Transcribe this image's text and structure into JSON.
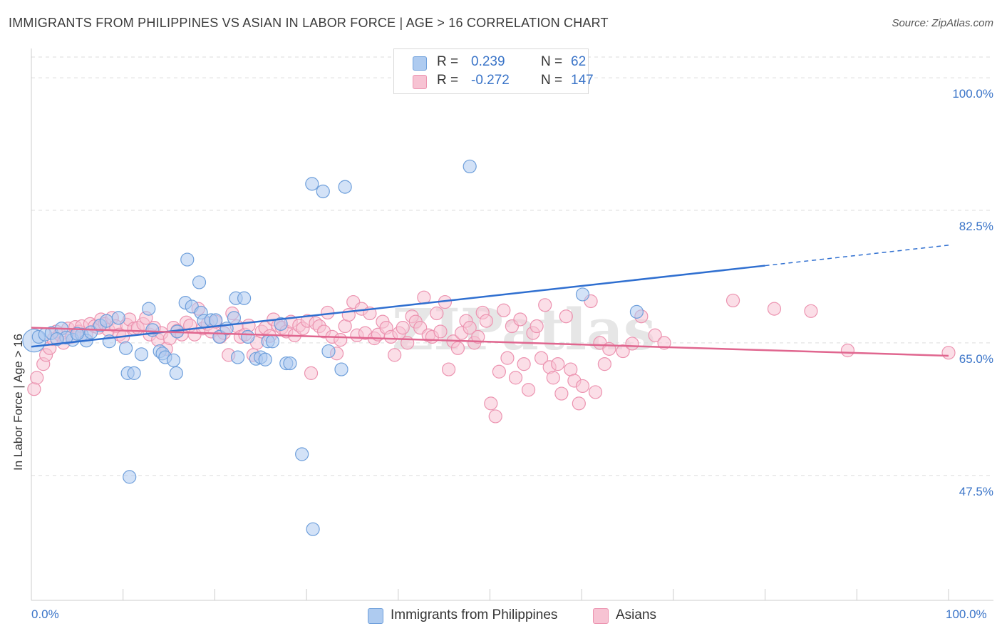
{
  "title": "IMMIGRANTS FROM PHILIPPINES VS ASIAN IN LABOR FORCE | AGE > 16 CORRELATION CHART",
  "source": "Source: ZipAtlas.com",
  "watermark": "ZIPatlas",
  "colors": {
    "blue_fill": "#aecbf0",
    "blue_stroke": "#6e9fdb",
    "blue_line": "#2f6fd0",
    "pink_fill": "#f7c3d3",
    "pink_stroke": "#ec93b0",
    "pink_line": "#e0668f",
    "axis_text": "#3a74c8",
    "grid": "#dddddd"
  },
  "legend": {
    "r_label": "R =",
    "n_label": "N =",
    "rows": [
      {
        "r": "0.239",
        "n": "62"
      },
      {
        "r": "-0.272",
        "n": "147"
      }
    ]
  },
  "bottom_legend": [
    "Immigrants from Philippines",
    "Asians"
  ],
  "chart_data": {
    "type": "scatter",
    "title": "IMMIGRANTS FROM PHILIPPINES VS ASIAN IN LABOR FORCE | AGE > 16 CORRELATION CHART",
    "xlabel": "",
    "ylabel": "In Labor Force | Age > 16",
    "xlim": [
      0,
      100
    ],
    "ylim": [
      31.0,
      103.5
    ],
    "y_ticks": [
      47.5,
      65.0,
      82.5,
      100.0
    ],
    "y_tick_labels": [
      "47.5%",
      "65.0%",
      "82.5%",
      "100.0%"
    ],
    "x_tick_labels": [
      "0.0%",
      "100.0%"
    ],
    "grid": true,
    "legend_position": "top-center",
    "series": [
      {
        "name": "Immigrants from Philippines",
        "r": 0.239,
        "n": 62,
        "trend": {
          "x0": 0,
          "y0": 64.5,
          "x1": 80,
          "y1": 75.2,
          "dash_x1": 100,
          "dash_y1": 77.9
        },
        "points": [
          [
            0.3,
            65.3
          ],
          [
            0.8,
            65.8
          ],
          [
            1.5,
            66.1
          ],
          [
            2.2,
            66.3
          ],
          [
            3.3,
            66.9
          ],
          [
            4.5,
            65.4
          ],
          [
            5.5,
            66.1
          ],
          [
            6.0,
            65.3
          ],
          [
            3.8,
            65.7
          ],
          [
            6.5,
            66.4
          ],
          [
            7.5,
            67.3
          ],
          [
            8.2,
            67.9
          ],
          [
            9.5,
            68.3
          ],
          [
            8.5,
            65.2
          ],
          [
            10.3,
            64.3
          ],
          [
            10.5,
            61.0
          ],
          [
            10.7,
            47.3
          ],
          [
            11.2,
            61.0
          ],
          [
            12.0,
            63.5
          ],
          [
            12.8,
            69.5
          ],
          [
            13.2,
            66.7
          ],
          [
            14.0,
            63.9
          ],
          [
            14.3,
            63.6
          ],
          [
            14.6,
            63.1
          ],
          [
            15.5,
            62.7
          ],
          [
            15.8,
            61.0
          ],
          [
            15.9,
            66.5
          ],
          [
            16.8,
            70.3
          ],
          [
            17.5,
            69.8
          ],
          [
            18.5,
            69.0
          ],
          [
            18.8,
            67.9
          ],
          [
            17.0,
            76.0
          ],
          [
            18.3,
            73.0
          ],
          [
            19.6,
            68.0
          ],
          [
            20.1,
            68.0
          ],
          [
            20.5,
            65.8
          ],
          [
            21.3,
            66.9
          ],
          [
            22.1,
            68.3
          ],
          [
            22.3,
            70.9
          ],
          [
            23.2,
            70.9
          ],
          [
            22.5,
            63.1
          ],
          [
            23.6,
            65.8
          ],
          [
            24.5,
            62.9
          ],
          [
            25.0,
            63.1
          ],
          [
            25.5,
            62.8
          ],
          [
            25.8,
            65.2
          ],
          [
            26.3,
            65.2
          ],
          [
            27.2,
            67.5
          ],
          [
            27.8,
            62.3
          ],
          [
            28.2,
            62.3
          ],
          [
            29.5,
            50.3
          ],
          [
            30.6,
            86.0
          ],
          [
            31.8,
            85.0
          ],
          [
            32.4,
            63.9
          ],
          [
            33.8,
            61.5
          ],
          [
            34.2,
            85.6
          ],
          [
            30.7,
            40.4
          ],
          [
            47.8,
            88.3
          ],
          [
            60.1,
            71.4
          ],
          [
            66.0,
            69.1
          ],
          [
            2.8,
            65.5
          ],
          [
            5.0,
            66.2
          ]
        ]
      },
      {
        "name": "Asians",
        "r": -0.272,
        "n": 147,
        "trend": {
          "x0": 0,
          "y0": 67.0,
          "x1": 100,
          "y1": 63.3
        },
        "points": [
          [
            0.3,
            58.9
          ],
          [
            0.6,
            60.4
          ],
          [
            1.3,
            62.2
          ],
          [
            1.6,
            63.4
          ],
          [
            2.0,
            64.3
          ],
          [
            2.4,
            65.5
          ],
          [
            2.7,
            66.5
          ],
          [
            3.1,
            66.1
          ],
          [
            3.5,
            65.0
          ],
          [
            4.0,
            66.9
          ],
          [
            4.4,
            65.8
          ],
          [
            4.8,
            67.1
          ],
          [
            5.2,
            66.5
          ],
          [
            5.5,
            67.2
          ],
          [
            6.0,
            66.1
          ],
          [
            6.4,
            67.5
          ],
          [
            6.9,
            67.2
          ],
          [
            7.3,
            67.0
          ],
          [
            7.6,
            68.1
          ],
          [
            8.0,
            67.5
          ],
          [
            8.4,
            66.7
          ],
          [
            8.8,
            68.3
          ],
          [
            9.2,
            67.2
          ],
          [
            9.6,
            66.1
          ],
          [
            10.0,
            65.8
          ],
          [
            10.4,
            67.4
          ],
          [
            10.7,
            68.1
          ],
          [
            11.2,
            66.9
          ],
          [
            11.6,
            67.0
          ],
          [
            12.2,
            67.5
          ],
          [
            12.5,
            68.3
          ],
          [
            12.9,
            66.1
          ],
          [
            13.4,
            67.0
          ],
          [
            13.8,
            65.4
          ],
          [
            14.2,
            66.3
          ],
          [
            14.7,
            64.2
          ],
          [
            15.1,
            65.6
          ],
          [
            15.5,
            67.0
          ],
          [
            15.9,
            66.6
          ],
          [
            16.4,
            66.1
          ],
          [
            16.9,
            67.7
          ],
          [
            17.3,
            67.3
          ],
          [
            17.8,
            66.1
          ],
          [
            18.2,
            69.5
          ],
          [
            18.7,
            66.9
          ],
          [
            19.2,
            67.5
          ],
          [
            19.6,
            66.5
          ],
          [
            20.1,
            67.8
          ],
          [
            20.6,
            65.8
          ],
          [
            21.0,
            66.3
          ],
          [
            21.5,
            63.4
          ],
          [
            21.9,
            68.9
          ],
          [
            22.4,
            67.2
          ],
          [
            22.8,
            65.8
          ],
          [
            23.3,
            66.1
          ],
          [
            23.7,
            67.3
          ],
          [
            24.2,
            63.4
          ],
          [
            24.6,
            65.0
          ],
          [
            25.1,
            66.5
          ],
          [
            25.5,
            67.0
          ],
          [
            26.0,
            65.9
          ],
          [
            26.4,
            68.1
          ],
          [
            26.9,
            67.3
          ],
          [
            27.3,
            67.0
          ],
          [
            27.8,
            66.5
          ],
          [
            28.3,
            67.8
          ],
          [
            28.7,
            66.0
          ],
          [
            29.2,
            67.3
          ],
          [
            29.6,
            66.9
          ],
          [
            30.1,
            67.9
          ],
          [
            30.5,
            61.0
          ],
          [
            31.0,
            67.6
          ],
          [
            31.4,
            67.2
          ],
          [
            31.9,
            66.5
          ],
          [
            32.3,
            69.0
          ],
          [
            32.8,
            65.8
          ],
          [
            33.3,
            63.6
          ],
          [
            33.7,
            65.4
          ],
          [
            34.2,
            67.2
          ],
          [
            34.6,
            68.7
          ],
          [
            35.1,
            70.4
          ],
          [
            35.5,
            66.0
          ],
          [
            36.0,
            69.5
          ],
          [
            36.4,
            66.3
          ],
          [
            36.9,
            68.9
          ],
          [
            37.4,
            65.6
          ],
          [
            37.8,
            66.1
          ],
          [
            38.3,
            67.8
          ],
          [
            38.7,
            67.0
          ],
          [
            39.2,
            65.8
          ],
          [
            39.6,
            63.4
          ],
          [
            40.1,
            66.3
          ],
          [
            40.5,
            67.0
          ],
          [
            41.0,
            65.0
          ],
          [
            41.5,
            68.5
          ],
          [
            41.9,
            67.8
          ],
          [
            42.4,
            67.0
          ],
          [
            42.8,
            71.0
          ],
          [
            43.3,
            66.0
          ],
          [
            43.7,
            65.8
          ],
          [
            44.2,
            68.9
          ],
          [
            44.6,
            66.5
          ],
          [
            45.1,
            70.4
          ],
          [
            45.5,
            61.5
          ],
          [
            46.0,
            65.2
          ],
          [
            46.5,
            64.3
          ],
          [
            46.9,
            66.3
          ],
          [
            47.4,
            67.9
          ],
          [
            47.8,
            67.0
          ],
          [
            48.3,
            65.0
          ],
          [
            48.7,
            65.8
          ],
          [
            49.2,
            69.0
          ],
          [
            49.6,
            67.9
          ],
          [
            50.1,
            57.0
          ],
          [
            50.6,
            55.3
          ],
          [
            51.0,
            61.2
          ],
          [
            51.5,
            69.3
          ],
          [
            51.9,
            63.0
          ],
          [
            52.4,
            67.2
          ],
          [
            52.8,
            60.4
          ],
          [
            53.3,
            68.1
          ],
          [
            53.7,
            62.2
          ],
          [
            54.2,
            58.8
          ],
          [
            54.7,
            66.3
          ],
          [
            55.1,
            67.2
          ],
          [
            55.6,
            63.0
          ],
          [
            56.0,
            70.0
          ],
          [
            56.5,
            61.8
          ],
          [
            56.9,
            60.4
          ],
          [
            57.4,
            62.2
          ],
          [
            57.8,
            58.3
          ],
          [
            58.3,
            68.5
          ],
          [
            58.8,
            61.5
          ],
          [
            59.2,
            60.0
          ],
          [
            59.7,
            57.0
          ],
          [
            60.1,
            59.3
          ],
          [
            61.0,
            70.5
          ],
          [
            61.5,
            58.5
          ],
          [
            62.0,
            65.0
          ],
          [
            62.5,
            62.2
          ],
          [
            63.0,
            64.2
          ],
          [
            64.5,
            63.9
          ],
          [
            65.5,
            64.9
          ],
          [
            66.5,
            68.5
          ],
          [
            68.0,
            66.0
          ],
          [
            69.0,
            65.0
          ],
          [
            76.5,
            70.6
          ],
          [
            81.0,
            69.5
          ],
          [
            85.0,
            69.2
          ],
          [
            89.0,
            64.0
          ],
          [
            100.0,
            63.7
          ]
        ]
      }
    ]
  }
}
